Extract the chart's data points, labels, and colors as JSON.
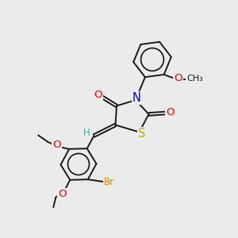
{
  "background_color": "#ebebeb",
  "bond_color": "#1a1a1a",
  "atom_colors": {
    "O": "#ee0000",
    "N": "#0000ee",
    "S": "#bbaa00",
    "Br": "#cc8800",
    "H": "#44aaaa",
    "C": "#1a1a1a"
  },
  "font_size": 8.5,
  "lw": 1.4
}
